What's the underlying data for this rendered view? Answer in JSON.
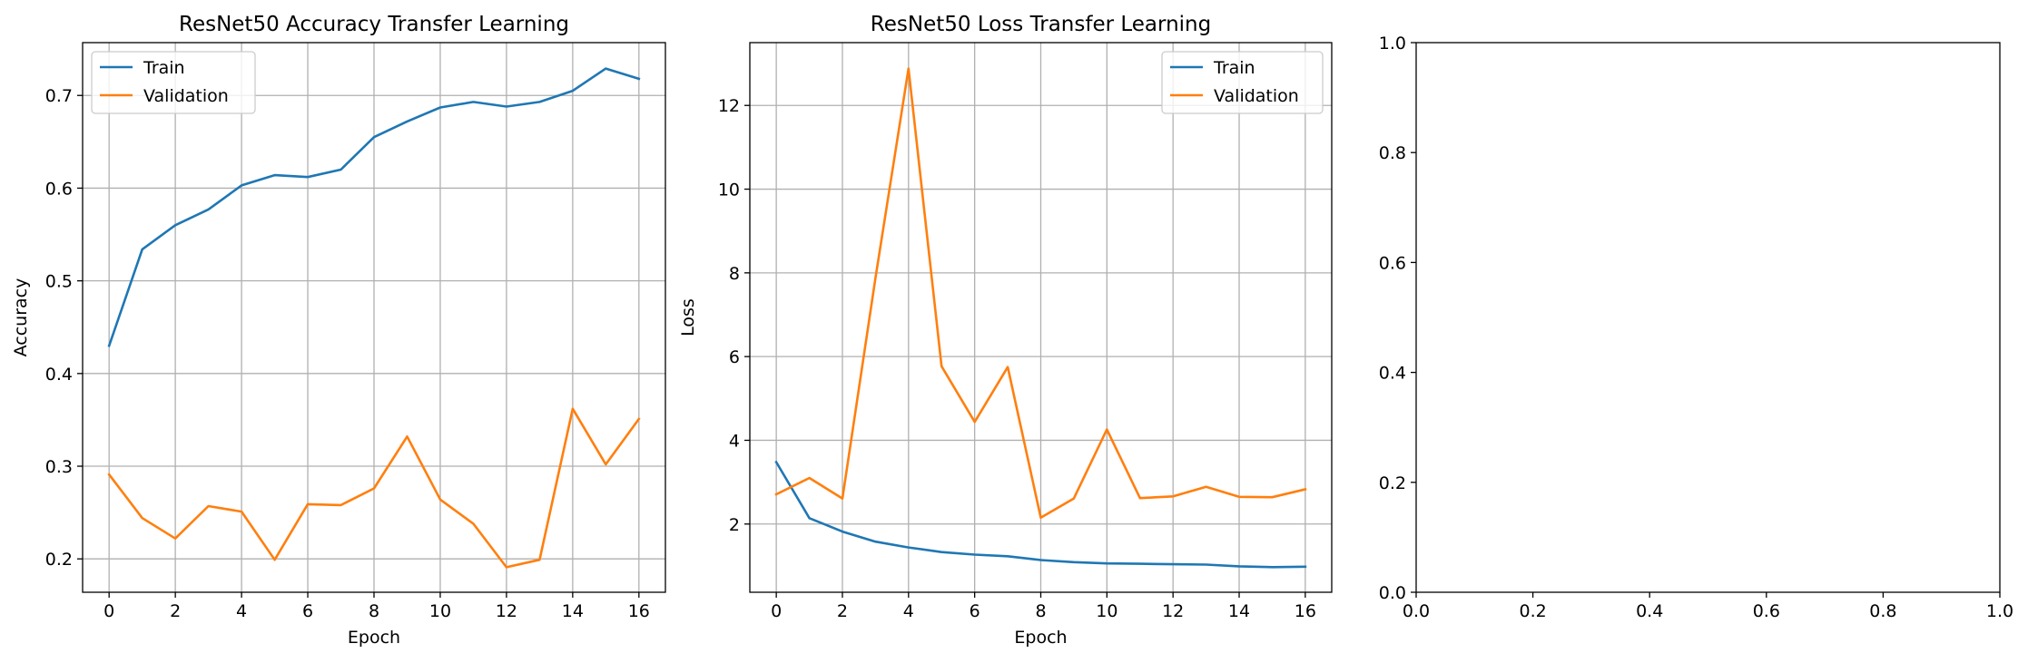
{
  "colors": {
    "train": "#1f77b4",
    "validation": "#ff7f0e",
    "grid": "#b0b0b0",
    "axes": "#000000"
  },
  "chart_data": [
    {
      "type": "line",
      "title": "ResNet50 Accuracy Transfer Learning",
      "xlabel": "Epoch",
      "ylabel": "Accuracy",
      "grid": true,
      "legend_position": "upper-left",
      "xlim": [
        -0.8,
        16.8
      ],
      "ylim": [
        0.164,
        0.757
      ],
      "xticks": [
        0,
        2,
        4,
        6,
        8,
        10,
        12,
        14,
        16
      ],
      "xtick_labels": [
        "0",
        "2",
        "4",
        "6",
        "8",
        "10",
        "12",
        "14",
        "16"
      ],
      "yticks": [
        0.2,
        0.3,
        0.4,
        0.5,
        0.6,
        0.7
      ],
      "ytick_labels": [
        "0.2",
        "0.3",
        "0.4",
        "0.5",
        "0.6",
        "0.7"
      ],
      "x": [
        0,
        1,
        2,
        3,
        4,
        5,
        6,
        7,
        8,
        9,
        10,
        11,
        12,
        13,
        14,
        15,
        16
      ],
      "series": [
        {
          "name": "Train",
          "color": "#1f77b4",
          "values": [
            0.43,
            0.534,
            0.56,
            0.577,
            0.603,
            0.614,
            0.612,
            0.62,
            0.655,
            0.672,
            0.687,
            0.693,
            0.688,
            0.693,
            0.705,
            0.729,
            0.718
          ]
        },
        {
          "name": "Validation",
          "color": "#ff7f0e",
          "values": [
            0.291,
            0.244,
            0.222,
            0.257,
            0.251,
            0.199,
            0.259,
            0.258,
            0.276,
            0.332,
            0.264,
            0.238,
            0.191,
            0.199,
            0.362,
            0.302,
            0.351
          ]
        }
      ]
    },
    {
      "type": "line",
      "title": "ResNet50 Loss Transfer Learning",
      "xlabel": "Epoch",
      "ylabel": "Loss",
      "grid": true,
      "legend_position": "upper-right",
      "xlim": [
        -0.8,
        16.8
      ],
      "ylim": [
        0.37,
        13.5
      ],
      "xticks": [
        0,
        2,
        4,
        6,
        8,
        10,
        12,
        14,
        16
      ],
      "xtick_labels": [
        "0",
        "2",
        "4",
        "6",
        "8",
        "10",
        "12",
        "14",
        "16"
      ],
      "yticks": [
        2,
        4,
        6,
        8,
        10,
        12
      ],
      "ytick_labels": [
        "2",
        "4",
        "6",
        "8",
        "10",
        "12"
      ],
      "x": [
        0,
        1,
        2,
        3,
        4,
        5,
        6,
        7,
        8,
        9,
        10,
        11,
        12,
        13,
        14,
        15,
        16
      ],
      "series": [
        {
          "name": "Train",
          "color": "#1f77b4",
          "values": [
            3.48,
            2.14,
            1.82,
            1.58,
            1.44,
            1.33,
            1.27,
            1.23,
            1.14,
            1.09,
            1.06,
            1.05,
            1.04,
            1.03,
            0.99,
            0.97,
            0.98
          ]
        },
        {
          "name": "Validation",
          "color": "#ff7f0e",
          "values": [
            2.71,
            3.1,
            2.61,
            7.88,
            12.88,
            5.77,
            4.44,
            5.75,
            2.15,
            2.61,
            4.26,
            2.62,
            2.66,
            2.89,
            2.65,
            2.64,
            2.83
          ]
        }
      ]
    },
    {
      "type": "line",
      "title": "",
      "xlabel": "",
      "ylabel": "",
      "grid": false,
      "xlim": [
        0.0,
        1.0
      ],
      "ylim": [
        0.0,
        1.0
      ],
      "xticks": [
        0.0,
        0.2,
        0.4,
        0.6,
        0.8,
        1.0
      ],
      "xtick_labels": [
        "0.0",
        "0.2",
        "0.4",
        "0.6",
        "0.8",
        "1.0"
      ],
      "yticks": [
        0.0,
        0.2,
        0.4,
        0.6,
        0.8,
        1.0
      ],
      "ytick_labels": [
        "0.0",
        "0.2",
        "0.4",
        "0.6",
        "0.8",
        "1.0"
      ],
      "series": []
    }
  ]
}
